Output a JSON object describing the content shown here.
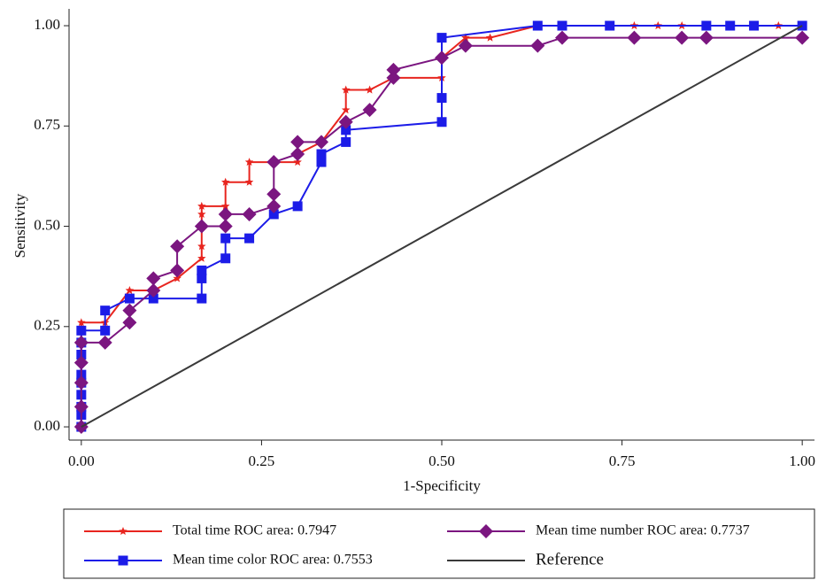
{
  "chart_data": {
    "type": "line",
    "ylabel": "Sensitivity",
    "xlabel": "1-Specificity",
    "xlim": [
      -0.017,
      1.017
    ],
    "ylim": [
      -0.033,
      1.042
    ],
    "xticks": [
      {
        "value": 0,
        "label": "0.00"
      },
      {
        "value": 0.25,
        "label": "0.25"
      },
      {
        "value": 0.5,
        "label": "0.50"
      },
      {
        "value": 0.75,
        "label": "0.75"
      },
      {
        "value": 1,
        "label": "1.00"
      }
    ],
    "yticks": [
      {
        "value": 0,
        "label": "0.00"
      },
      {
        "value": 0.25,
        "label": "0.25"
      },
      {
        "value": 0.5,
        "label": "0.50"
      },
      {
        "value": 0.75,
        "label": "0.75"
      },
      {
        "value": 1,
        "label": "1.00"
      }
    ],
    "grid": false,
    "series": [
      {
        "name": "Total time ROC area: 0.7947",
        "color": "#e8251f",
        "marker": "star",
        "x": [
          0,
          0,
          0.033,
          0.067,
          0.1,
          0.133,
          0.167,
          0.167,
          0.167,
          0.167,
          0.2,
          0.2,
          0.233,
          0.233,
          0.267,
          0.3,
          0.3,
          0.333,
          0.367,
          0.367,
          0.4,
          0.433,
          0.5,
          0.5,
          0.533,
          0.567,
          0.633,
          0.667,
          0.733,
          0.767,
          0.8,
          0.833,
          0.867,
          0.9,
          0.933,
          0.967,
          1
        ],
        "values": [
          0,
          0.26,
          0.26,
          0.34,
          0.34,
          0.37,
          0.42,
          0.45,
          0.53,
          0.55,
          0.55,
          0.61,
          0.61,
          0.66,
          0.66,
          0.66,
          0.68,
          0.71,
          0.79,
          0.84,
          0.84,
          0.87,
          0.87,
          0.92,
          0.97,
          0.97,
          1,
          1,
          1,
          1,
          1,
          1,
          1,
          1,
          1,
          1,
          1
        ]
      },
      {
        "name": "Mean time color ROC area: 0.7553",
        "color": "#1c1ce8",
        "marker": "square",
        "x": [
          0,
          0,
          0,
          0,
          0,
          0,
          0,
          0,
          0,
          0.033,
          0.033,
          0.067,
          0.1,
          0.167,
          0.167,
          0.167,
          0.2,
          0.2,
          0.233,
          0.267,
          0.3,
          0.333,
          0.333,
          0.367,
          0.367,
          0.5,
          0.5,
          0.5,
          0.633,
          0.667,
          0.733,
          0.867,
          0.9,
          0.933,
          1
        ],
        "values": [
          0,
          0.03,
          0.05,
          0.08,
          0.11,
          0.13,
          0.18,
          0.21,
          0.24,
          0.24,
          0.29,
          0.32,
          0.32,
          0.32,
          0.37,
          0.39,
          0.42,
          0.47,
          0.47,
          0.53,
          0.55,
          0.66,
          0.68,
          0.71,
          0.74,
          0.76,
          0.82,
          0.97,
          1,
          1,
          1,
          1,
          1,
          1,
          1
        ]
      },
      {
        "name": "Mean time number ROC area: 0.7737",
        "color": "#7b1680",
        "marker": "diamond",
        "x": [
          0,
          0,
          0,
          0,
          0,
          0.033,
          0.067,
          0.067,
          0.1,
          0.1,
          0.133,
          0.133,
          0.167,
          0.2,
          0.2,
          0.233,
          0.267,
          0.267,
          0.267,
          0.3,
          0.3,
          0.333,
          0.367,
          0.4,
          0.433,
          0.433,
          0.5,
          0.533,
          0.633,
          0.667,
          0.767,
          0.833,
          0.867,
          1
        ],
        "values": [
          0,
          0.05,
          0.11,
          0.16,
          0.21,
          0.21,
          0.26,
          0.29,
          0.34,
          0.37,
          0.39,
          0.45,
          0.5,
          0.5,
          0.53,
          0.53,
          0.55,
          0.58,
          0.66,
          0.68,
          0.71,
          0.71,
          0.76,
          0.79,
          0.87,
          0.89,
          0.92,
          0.95,
          0.95,
          0.97,
          0.97,
          0.97,
          0.97,
          0.97
        ]
      },
      {
        "name": "Reference",
        "color": "#3a3a3a",
        "x": [
          0,
          1
        ],
        "values": [
          0,
          1
        ]
      }
    ]
  }
}
